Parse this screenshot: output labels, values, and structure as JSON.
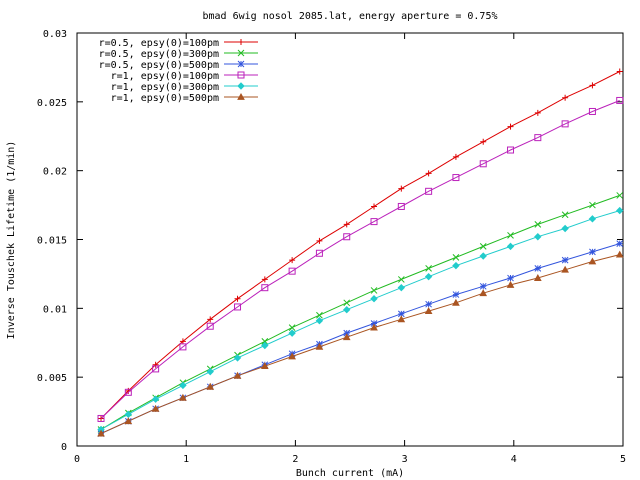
{
  "chart_data": {
    "type": "line",
    "title": "bmad 6wig nosol 2085.lat, energy aperture = 0.75%",
    "xlabel": "Bunch current (mA)",
    "ylabel": "Inverse Touschek Lifetime (1/min)",
    "xlim": [
      0,
      5
    ],
    "ylim": [
      0,
      0.03
    ],
    "x_ticks": [
      0,
      1,
      2,
      3,
      4,
      5
    ],
    "x_tick_labels": [
      "0",
      "1",
      "2",
      "3",
      "4",
      "5"
    ],
    "y_ticks": [
      0,
      0.005,
      0.01,
      0.015,
      0.02,
      0.025,
      0.03
    ],
    "y_tick_labels": [
      "0",
      "0.005",
      "0.01",
      "0.015",
      "0.02",
      "0.025",
      "0.03"
    ],
    "grid": false,
    "legend_position": "top-left",
    "x": [
      0.22,
      0.47,
      0.72,
      0.97,
      1.22,
      1.47,
      1.72,
      1.97,
      2.22,
      2.47,
      2.72,
      2.97,
      3.22,
      3.47,
      3.72,
      3.97,
      4.22,
      4.47,
      4.72,
      4.97
    ],
    "series": [
      {
        "name": "r=0.5, epsy(0)=100pm",
        "color": "#dd0000",
        "marker": "plus",
        "values": [
          0.002,
          0.004,
          0.0059,
          0.0076,
          0.0092,
          0.0107,
          0.0121,
          0.0135,
          0.0149,
          0.0161,
          0.0174,
          0.0187,
          0.0198,
          0.021,
          0.0221,
          0.0232,
          0.0242,
          0.0253,
          0.0262,
          0.0272
        ]
      },
      {
        "name": "r=0.5, epsy(0)=300pm",
        "color": "#22bb22",
        "marker": "cross",
        "values": [
          0.0012,
          0.0024,
          0.0035,
          0.0046,
          0.0056,
          0.0066,
          0.0076,
          0.0086,
          0.0095,
          0.0104,
          0.0113,
          0.0121,
          0.0129,
          0.0137,
          0.0145,
          0.0153,
          0.0161,
          0.0168,
          0.0175,
          0.0182
        ]
      },
      {
        "name": "r=0.5, epsy(0)=500pm",
        "color": "#3355dd",
        "marker": "star",
        "values": [
          0.0009,
          0.0018,
          0.0027,
          0.0035,
          0.0043,
          0.0051,
          0.0059,
          0.0067,
          0.0074,
          0.0082,
          0.0089,
          0.0096,
          0.0103,
          0.011,
          0.0116,
          0.0122,
          0.0129,
          0.0135,
          0.0141,
          0.0147
        ]
      },
      {
        "name": "r=1, epsy(0)=100pm",
        "color": "#bb22bb",
        "marker": "square",
        "values": [
          0.002,
          0.0039,
          0.0056,
          0.0072,
          0.0087,
          0.0101,
          0.0115,
          0.0127,
          0.014,
          0.0152,
          0.0163,
          0.0174,
          0.0185,
          0.0195,
          0.0205,
          0.0215,
          0.0224,
          0.0234,
          0.0243,
          0.0251
        ]
      },
      {
        "name": "r=1, epsy(0)=300pm",
        "color": "#22cccc",
        "marker": "diamond",
        "values": [
          0.0012,
          0.0023,
          0.0034,
          0.0044,
          0.0054,
          0.0064,
          0.0073,
          0.0082,
          0.0091,
          0.0099,
          0.0107,
          0.0115,
          0.0123,
          0.0131,
          0.0138,
          0.0145,
          0.0152,
          0.0158,
          0.0165,
          0.0171
        ]
      },
      {
        "name": "r=1, epsy(0)=500pm",
        "color": "#aa5522",
        "marker": "triangle",
        "values": [
          0.0009,
          0.0018,
          0.0027,
          0.0035,
          0.0043,
          0.0051,
          0.0058,
          0.0065,
          0.0072,
          0.0079,
          0.0086,
          0.0092,
          0.0098,
          0.0104,
          0.0111,
          0.0117,
          0.0122,
          0.0128,
          0.0134,
          0.0139
        ]
      }
    ]
  }
}
